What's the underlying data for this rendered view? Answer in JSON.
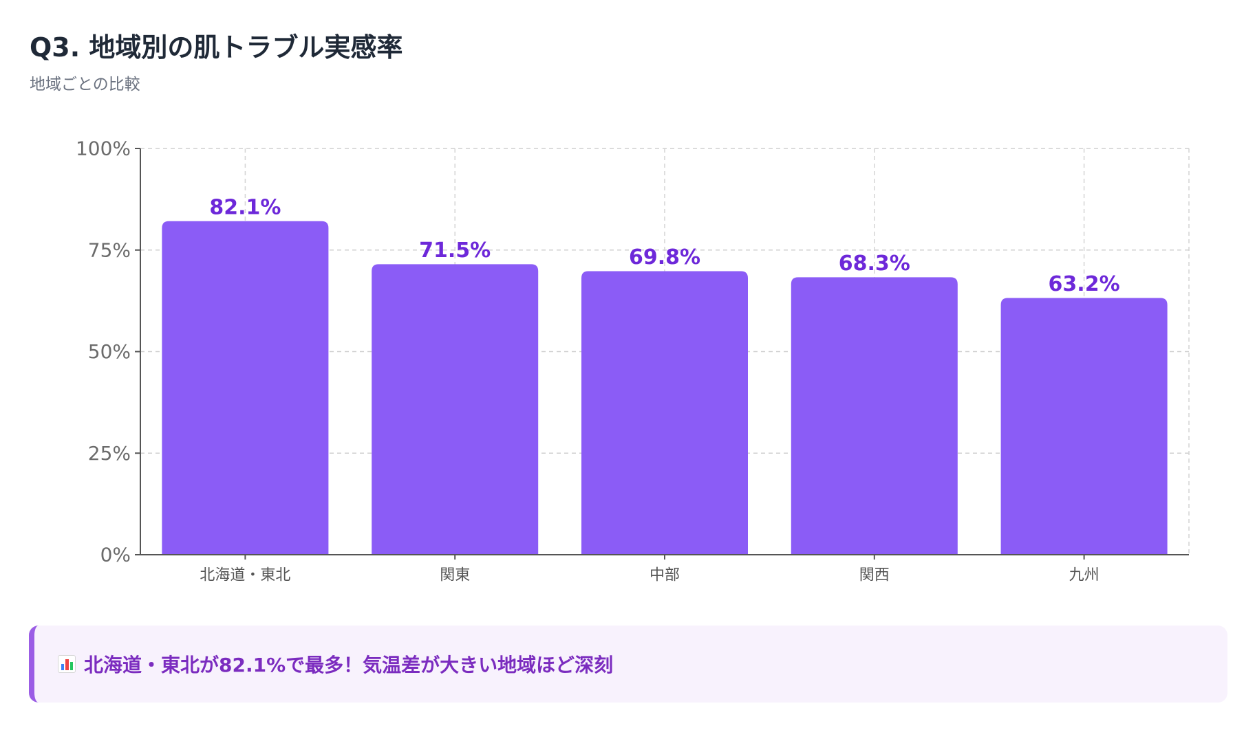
{
  "title": "Q3. 地域別の肌トラブル実感率",
  "subtitle": "地域ごとの比較",
  "colors": {
    "bar": "#8b5cf6",
    "value_label": "#6d28d9",
    "callout_text": "#7b2cbf",
    "callout_bg": "#f8f2fd",
    "callout_border": "#9b5de5"
  },
  "chart_data": {
    "type": "bar",
    "categories": [
      "北海道・東北",
      "関東",
      "中部",
      "関西",
      "九州"
    ],
    "values": [
      82.1,
      71.5,
      69.8,
      68.3,
      63.2
    ],
    "data_labels": [
      "82.1%",
      "71.5%",
      "69.8%",
      "68.3%",
      "63.2%"
    ],
    "ylim": [
      0,
      100
    ],
    "yticks": [
      0,
      25,
      50,
      75,
      100
    ],
    "ytick_labels": [
      "0%",
      "25%",
      "50%",
      "75%",
      "100%"
    ],
    "grid": true,
    "legend": "none"
  },
  "callout": {
    "icon": "bar-chart-icon",
    "text": "北海道・東北が82.1%で最多！気温差が大きい地域ほど深刻"
  }
}
